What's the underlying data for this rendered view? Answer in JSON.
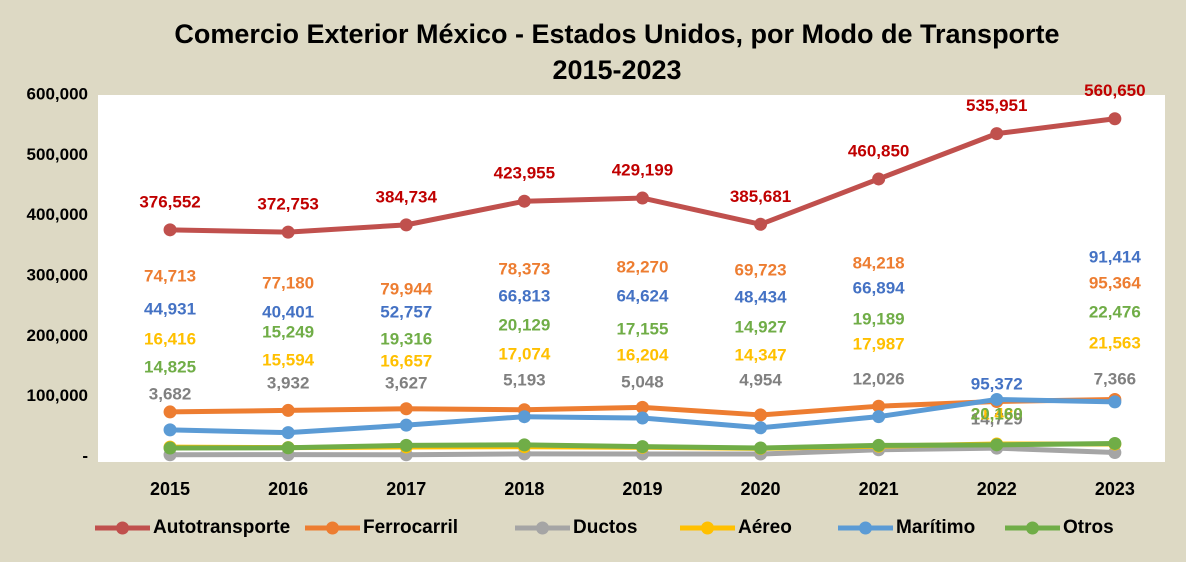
{
  "chart_data": {
    "type": "line",
    "title": [
      "Comercio Exterior México - Estados Unidos, por Modo de Transporte",
      "2015-2023"
    ],
    "categories": [
      "2015",
      "2016",
      "2017",
      "2018",
      "2019",
      "2020",
      "2021",
      "2022",
      "2023"
    ],
    "ylim": [
      0,
      600000
    ],
    "yticks": [
      {
        "value": 0,
        "label": "-"
      },
      {
        "value": 100000,
        "label": "100,000"
      },
      {
        "value": 200000,
        "label": "200,000"
      },
      {
        "value": 300000,
        "label": "300,000"
      },
      {
        "value": 400000,
        "label": "400,000"
      },
      {
        "value": 500000,
        "label": "500,000"
      },
      {
        "value": 600000,
        "label": "600,000"
      }
    ],
    "grid": false,
    "legend": "bottom",
    "series": [
      {
        "name": "Autotransporte",
        "color": "#c0504d",
        "label_color": "#c00000",
        "values": [
          376552,
          372753,
          384734,
          423955,
          429199,
          385681,
          460850,
          535951,
          560650
        ],
        "value_labels": [
          "376,552",
          "372,753",
          "384,734",
          "423,955",
          "429,199",
          "385,681",
          "460,850",
          "535,951",
          "560,650"
        ]
      },
      {
        "name": "Ferrocarril",
        "color": "#ed7d31",
        "label_color": "#ed7d31",
        "values": [
          74713,
          77180,
          79944,
          78373,
          82270,
          69723,
          84218,
          92000,
          95364
        ],
        "value_labels": [
          "74,713",
          "77,180",
          "79,944",
          "78,373",
          "82,270",
          "69,723",
          "84,218",
          null,
          "95,364"
        ]
      },
      {
        "name": "Ductos",
        "color": "#a5a5a5",
        "label_color": "#808080",
        "values": [
          3682,
          3932,
          3627,
          5193,
          5048,
          4954,
          12026,
          14729,
          7366
        ],
        "value_labels": [
          "3,682",
          "3,932",
          "3,627",
          "5,193",
          "5,048",
          "4,954",
          "12,026",
          "14,729",
          "7,366"
        ]
      },
      {
        "name": "Aéreo",
        "color": "#ffc000",
        "label_color": "#ffc000",
        "values": [
          16416,
          15594,
          16657,
          17074,
          16204,
          14347,
          17987,
          21480,
          21563
        ],
        "value_labels": [
          "16,416",
          "15,594",
          "16,657",
          "17,074",
          "16,204",
          "14,347",
          "17,987",
          "21,480",
          "21,563"
        ]
      },
      {
        "name": "Marítimo",
        "color": "#5b9bd5",
        "label_color": "#4472c4",
        "values": [
          44931,
          40401,
          52757,
          66813,
          64624,
          48434,
          66894,
          95372,
          91414
        ],
        "value_labels": [
          "44,931",
          "40,401",
          "52,757",
          "66,813",
          "64,624",
          "48,434",
          "66,894",
          "95,372",
          "91,414"
        ]
      },
      {
        "name": "Otros",
        "color": "#70ad47",
        "label_color": "#70ad47",
        "values": [
          14825,
          15249,
          19316,
          20129,
          17155,
          14927,
          19189,
          20160,
          22476
        ],
        "value_labels": [
          "14,825",
          "15,249",
          "19,316",
          "20,129",
          "17,155",
          "14,927",
          "19,189",
          "20,160",
          "22,476"
        ]
      }
    ]
  }
}
